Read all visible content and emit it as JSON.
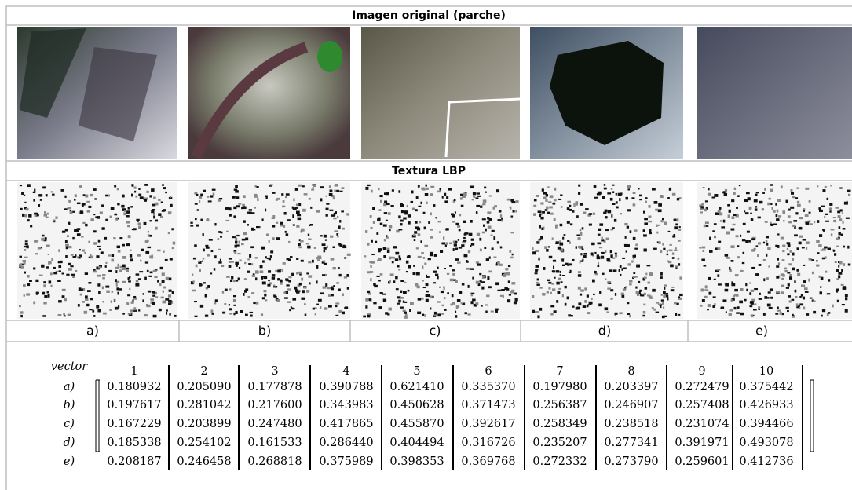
{
  "header": {
    "original": "Imagen original (parche)",
    "texture": "Textura LBP"
  },
  "panels": [
    "a)",
    "b)",
    "c)",
    "d)",
    "e)"
  ],
  "matrix": {
    "vector_label": "vector",
    "columns": [
      "1",
      "2",
      "3",
      "4",
      "5",
      "6",
      "7",
      "8",
      "9",
      "10"
    ],
    "rows": [
      {
        "label": "a)",
        "values": [
          "0.180932",
          "0.205090",
          "0.177878",
          "0.390788",
          "0.621410",
          "0.335370",
          "0.197980",
          "0.203397",
          "0.272479",
          "0.375442"
        ]
      },
      {
        "label": "b)",
        "values": [
          "0.197617",
          "0.281042",
          "0.217600",
          "0.343983",
          "0.450628",
          "0.371473",
          "0.256387",
          "0.246907",
          "0.257408",
          "0.426933"
        ]
      },
      {
        "label": "c)",
        "values": [
          "0.167229",
          "0.203899",
          "0.247480",
          "0.417865",
          "0.455870",
          "0.392617",
          "0.258349",
          "0.238518",
          "0.231074",
          "0.394466"
        ]
      },
      {
        "label": "d)",
        "values": [
          "0.185338",
          "0.254102",
          "0.161533",
          "0.286440",
          "0.404494",
          "0.316726",
          "0.235207",
          "0.277341",
          "0.391971",
          "0.493078"
        ]
      },
      {
        "label": "e)",
        "values": [
          "0.208187",
          "0.246458",
          "0.268818",
          "0.375989",
          "0.398353",
          "0.369768",
          "0.272332",
          "0.273790",
          "0.259601",
          "0.412736"
        ]
      }
    ]
  }
}
